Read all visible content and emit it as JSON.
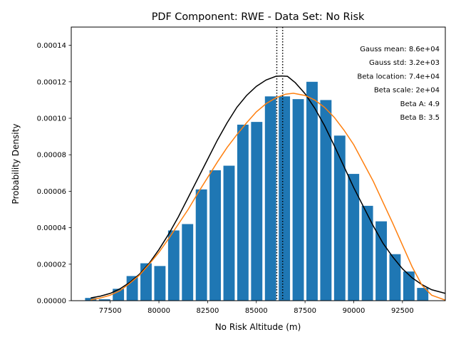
{
  "chart_data": {
    "type": "bar",
    "title": "PDF Component: RWE - Data Set: No Risk",
    "xlabel": "No Risk Altitude (m)",
    "ylabel": "Probability Density",
    "xlim": [
      75500,
      94700
    ],
    "ylim": [
      0,
      0.00015
    ],
    "xticks": [
      77500,
      80000,
      82500,
      85000,
      87500,
      90000,
      92500
    ],
    "xtick_labels": [
      "77500",
      "80000",
      "82500",
      "85000",
      "87500",
      "90000",
      "92500"
    ],
    "yticks": [
      0,
      2e-05,
      4e-05,
      6e-05,
      8e-05,
      0.0001,
      0.00012,
      0.00014
    ],
    "ytick_labels": [
      "0.00000",
      "0.00002",
      "0.00004",
      "0.00006",
      "0.00008",
      "0.00010",
      "0.00012",
      "0.00014"
    ],
    "bar_color": "#1f77b4",
    "bar_width": 580,
    "bars": {
      "x": [
        76500,
        77210,
        77920,
        78630,
        79340,
        80050,
        80760,
        81470,
        82180,
        82890,
        83600,
        84310,
        85020,
        85730,
        86440,
        87150,
        87860,
        88570,
        89280,
        89990,
        90700,
        91410,
        92120,
        92830,
        93540
      ],
      "values": [
        1.5e-06,
        8e-07,
        6.5e-06,
        1.35e-05,
        2.05e-05,
        1.9e-05,
        3.85e-05,
        4.2e-05,
        6.1e-05,
        7.15e-05,
        7.4e-05,
        9.65e-05,
        9.8e-05,
        0.000112,
        0.000112,
        0.0001105,
        0.00012,
        0.00011,
        9.05e-05,
        6.95e-05,
        5.2e-05,
        4.35e-05,
        2.55e-05,
        1.6e-05,
        7e-06
      ]
    },
    "series": [
      {
        "kind": "gauss",
        "color": "#000000",
        "x": [
          76500,
          77000,
          77500,
          78000,
          78500,
          79000,
          79500,
          80000,
          80500,
          81000,
          81500,
          82000,
          82500,
          83000,
          83500,
          84000,
          84500,
          85000,
          85500,
          86000,
          86300,
          86600,
          87000,
          87500,
          88000,
          88500,
          89000,
          89500,
          90000,
          90500,
          91000,
          91500,
          92000,
          92500,
          93000,
          93500,
          94000,
          94700
        ],
        "y": [
          1.5e-06,
          2.5e-06,
          4e-06,
          6.5e-06,
          1e-05,
          1.45e-05,
          2.05e-05,
          2.8e-05,
          3.65e-05,
          4.6e-05,
          5.65e-05,
          6.7e-05,
          7.75e-05,
          8.8e-05,
          9.75e-05,
          0.000106,
          0.0001125,
          0.0001175,
          0.000121,
          0.000123,
          0.0001232,
          0.000123,
          0.0001195,
          0.0001135,
          0.0001055,
          9.6e-05,
          8.5e-05,
          7.35e-05,
          6.2e-05,
          5.15e-05,
          4.1e-05,
          3.15e-05,
          2.4e-05,
          1.75e-05,
          1.25e-05,
          8.8e-06,
          6e-06,
          4e-06
        ]
      },
      {
        "kind": "beta",
        "color": "#ff7f0e",
        "x": [
          76500,
          77000,
          77500,
          78000,
          78500,
          79000,
          79500,
          80000,
          80500,
          81000,
          81500,
          82000,
          82500,
          83000,
          83500,
          84000,
          84500,
          85000,
          85500,
          86000,
          86500,
          86900,
          87500,
          88000,
          88500,
          89000,
          89500,
          90000,
          90500,
          91000,
          91500,
          92000,
          92500,
          93000,
          93500,
          94000,
          94700
        ],
        "y": [
          5e-07,
          1.5e-06,
          3e-06,
          5.5e-06,
          9.5e-06,
          1.4e-05,
          2e-05,
          2.65e-05,
          3.4e-05,
          4.2e-05,
          5e-05,
          5.9e-05,
          6.75e-05,
          7.6e-05,
          8.4e-05,
          9.1e-05,
          9.75e-05,
          0.0001035,
          0.000108,
          0.0001112,
          0.0001132,
          0.0001137,
          0.0001125,
          0.00011,
          0.000106,
          0.0001005,
          9.35e-05,
          8.55e-05,
          7.55e-05,
          6.55e-05,
          5.4e-05,
          4.25e-05,
          3.05e-05,
          1.85e-05,
          8.5e-06,
          3e-06,
          3e-07
        ]
      }
    ],
    "vlines": [
      86050,
      86350
    ],
    "annotations": [
      "Gauss mean: 8.6e+04",
      "Gauss std: 3.2e+03",
      "Beta location: 7.4e+04",
      "Beta scale: 2e+04",
      "Beta A: 4.9",
      "Beta B: 3.5"
    ],
    "grid": false
  }
}
